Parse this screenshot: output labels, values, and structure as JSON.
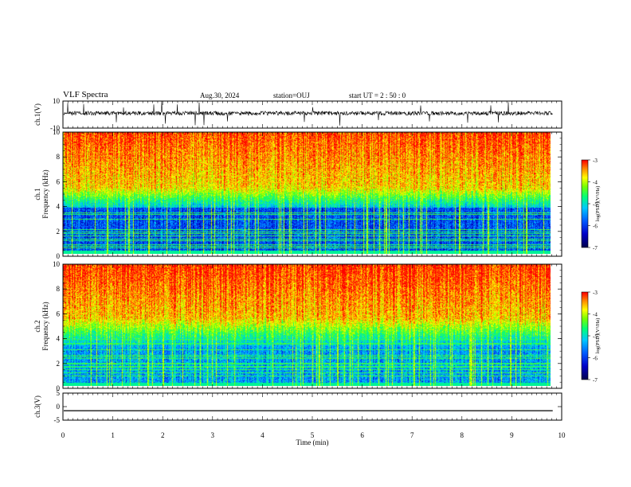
{
  "header": {
    "title": "VLF Spectra",
    "date": "Aug.30, 2024",
    "station": "station=OUJ",
    "start": "start  UT  =   2  : 50 : 0"
  },
  "chart_data": [
    {
      "type": "line",
      "ylabel": "ch.1(V)",
      "ylim": [
        -10,
        10
      ],
      "yticks": [
        "10",
        "-10"
      ],
      "baseline": 1,
      "description_values": {
        "noise_amplitude": 1.5
      }
    },
    {
      "type": "heatmap",
      "ylabel_top": "ch.1",
      "ylabel": "Frequency (kHz)",
      "ylim": [
        0,
        10
      ],
      "yticks": [
        "0",
        "2",
        "4",
        "6",
        "8",
        "10"
      ],
      "colorbar": {
        "label": "log(PSD)(V²/Hz)",
        "range": [
          -7,
          -3
        ],
        "ticks": [
          "-3",
          "-4",
          "-5",
          "-6",
          "-7"
        ]
      }
    },
    {
      "type": "heatmap",
      "ylabel_top": "ch.2",
      "ylabel": "Frequency (kHz)",
      "ylim": [
        0,
        10
      ],
      "yticks": [
        "0",
        "2",
        "4",
        "6",
        "8",
        "10"
      ],
      "colorbar": {
        "label": "log(PSD)(V²/Hz)",
        "range": [
          -7,
          -3
        ],
        "ticks": [
          "-3",
          "-4",
          "-5",
          "-6",
          "-7"
        ]
      }
    },
    {
      "type": "line",
      "ylabel": "ch.3(V)",
      "ylim": [
        -5,
        5
      ],
      "yticks": [
        "5",
        "0",
        "-5"
      ],
      "baseline": -1.5
    }
  ],
  "xaxis": {
    "label": "Time (min)",
    "range": [
      0,
      10
    ],
    "ticks": [
      "0",
      "1",
      "2",
      "3",
      "4",
      "5",
      "6",
      "7",
      "8",
      "9",
      "10"
    ],
    "data_end": 9.82
  },
  "colors": {
    "red": "#ff0000",
    "yellow": "#ffff00",
    "green": "#00ff00",
    "cyan": "#00c0ff",
    "blue": "#0000ff",
    "darkblue": "#00008b"
  }
}
